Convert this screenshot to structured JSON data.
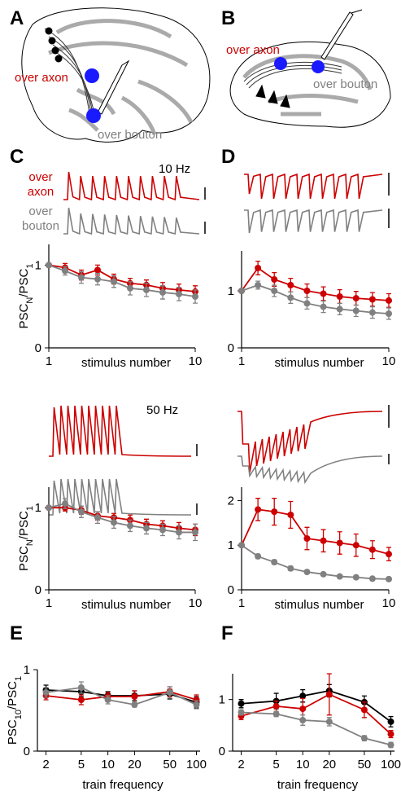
{
  "figure": {
    "panel_labels": [
      "A",
      "B",
      "C",
      "D",
      "E",
      "F"
    ],
    "diagram_a": {
      "axon_label": "over axon",
      "bouton_label": "over bouton"
    },
    "diagram_b": {
      "axon_label": "over axon",
      "bouton_label": "over bouton"
    },
    "freq_10": "10 Hz",
    "freq_50": "50 Hz",
    "trace_axon": [
      "over",
      "axon"
    ],
    "trace_bouton": [
      "over",
      "bouton"
    ]
  },
  "chart_data": [
    {
      "type": "line",
      "xlabel": "stimulus number",
      "ylabel": {
        "main": "PSC",
        "sub": "N",
        "main2": "/PSC",
        "sub2": "1"
      },
      "x": [
        1,
        2,
        3,
        4,
        5,
        6,
        7,
        8,
        9,
        10
      ],
      "xlim": [
        1,
        10
      ],
      "xticks": [
        1,
        10
      ],
      "ylim": [
        0,
        1.25
      ],
      "yticks": [
        0,
        1
      ],
      "series": [
        {
          "color": "#cc0000",
          "values": [
            1,
            0.97,
            0.88,
            0.94,
            0.83,
            0.78,
            0.76,
            0.72,
            0.7,
            0.68
          ],
          "errors": [
            0,
            0.05,
            0.06,
            0.06,
            0.06,
            0.06,
            0.06,
            0.07,
            0.07,
            0.07
          ]
        },
        {
          "color": "#808080",
          "values": [
            1,
            0.93,
            0.85,
            0.83,
            0.8,
            0.72,
            0.7,
            0.67,
            0.65,
            0.62
          ],
          "errors": [
            0,
            0.05,
            0.07,
            0.07,
            0.07,
            0.08,
            0.08,
            0.08,
            0.08,
            0.08
          ]
        }
      ]
    },
    {
      "type": "line",
      "xlabel": "stimulus number",
      "x": [
        1,
        2,
        3,
        4,
        5,
        6,
        7,
        8,
        9,
        10
      ],
      "xlim": [
        1,
        10
      ],
      "xticks": [
        1,
        10
      ],
      "ylim": [
        0,
        1.7
      ],
      "yticks": [
        0,
        1
      ],
      "series": [
        {
          "color": "#cc0000",
          "values": [
            1,
            1.4,
            1.2,
            1.1,
            1.0,
            0.95,
            0.9,
            0.87,
            0.85,
            0.83
          ],
          "errors": [
            0,
            0.12,
            0.12,
            0.12,
            0.12,
            0.12,
            0.12,
            0.12,
            0.12,
            0.12
          ]
        },
        {
          "color": "#808080",
          "values": [
            1,
            1.1,
            1.0,
            0.88,
            0.78,
            0.72,
            0.68,
            0.65,
            0.62,
            0.6
          ],
          "errors": [
            0,
            0.07,
            0.1,
            0.1,
            0.1,
            0.1,
            0.1,
            0.1,
            0.1,
            0.1
          ]
        }
      ]
    },
    {
      "type": "line",
      "xlabel": "stimulus number",
      "ylabel": {
        "main": "PSC",
        "sub": "N",
        "main2": "/PSC",
        "sub2": "1"
      },
      "x": [
        1,
        2,
        3,
        4,
        5,
        6,
        7,
        8,
        9,
        10
      ],
      "xlim": [
        1,
        10
      ],
      "xticks": [
        1,
        10
      ],
      "ylim": [
        0,
        1.25
      ],
      "yticks": [
        0,
        1
      ],
      "series": [
        {
          "color": "#cc0000",
          "values": [
            1,
            1.0,
            0.97,
            0.9,
            0.88,
            0.85,
            0.8,
            0.78,
            0.75,
            0.73
          ],
          "errors": [
            0,
            0.04,
            0.05,
            0.05,
            0.05,
            0.06,
            0.06,
            0.06,
            0.07,
            0.07
          ]
        },
        {
          "color": "#808080",
          "values": [
            1,
            1.05,
            0.95,
            0.88,
            0.82,
            0.78,
            0.75,
            0.73,
            0.7,
            0.7
          ],
          "errors": [
            0,
            0.06,
            0.07,
            0.07,
            0.07,
            0.07,
            0.07,
            0.07,
            0.08,
            0.1
          ]
        }
      ]
    },
    {
      "type": "line",
      "xlabel": "stimulus number",
      "x": [
        1,
        2,
        3,
        4,
        5,
        6,
        7,
        8,
        9,
        10
      ],
      "xlim": [
        1,
        10
      ],
      "xticks": [
        1,
        10
      ],
      "ylim": [
        0,
        2.3
      ],
      "yticks": [
        0,
        1,
        2
      ],
      "series": [
        {
          "color": "#cc0000",
          "values": [
            1,
            1.8,
            1.75,
            1.68,
            1.15,
            1.1,
            1.05,
            1.0,
            0.9,
            0.8
          ],
          "errors": [
            0,
            0.25,
            0.3,
            0.3,
            0.25,
            0.25,
            0.25,
            0.25,
            0.2,
            0.15
          ]
        },
        {
          "color": "#808080",
          "values": [
            1,
            0.75,
            0.62,
            0.48,
            0.4,
            0.35,
            0.3,
            0.28,
            0.25,
            0.24
          ],
          "errors": [
            0,
            0.05,
            0.05,
            0.05,
            0.04,
            0.04,
            0.04,
            0.04,
            0.04,
            0.04
          ]
        }
      ]
    },
    {
      "type": "line",
      "xscale": "log",
      "xlabel": "train frequency",
      "ylabel": {
        "main": "PSC",
        "sub": "10",
        "main2": "/PSC",
        "sub2": "1"
      },
      "x": [
        2,
        5,
        10,
        20,
        50,
        100
      ],
      "xlim": [
        1.6,
        110
      ],
      "xticks": [
        2,
        5,
        10,
        20,
        50,
        100
      ],
      "ylim": [
        0,
        1
      ],
      "yticks": [
        0,
        1
      ],
      "series": [
        {
          "color": "#000000",
          "values": [
            0.75,
            0.73,
            0.68,
            0.68,
            0.7,
            0.6
          ],
          "errors": [
            0.06,
            0.06,
            0.05,
            0.06,
            0.06,
            0.07
          ]
        },
        {
          "color": "#cc0000",
          "values": [
            0.68,
            0.63,
            0.67,
            0.67,
            0.73,
            0.63
          ],
          "errors": [
            0.05,
            0.06,
            0.05,
            0.07,
            0.06,
            0.06
          ]
        },
        {
          "color": "#808080",
          "values": [
            0.72,
            0.78,
            0.63,
            0.57,
            0.72,
            0.57
          ],
          "errors": [
            0.06,
            0.07,
            0.05,
            0.03,
            0.07,
            0.05
          ]
        }
      ]
    },
    {
      "type": "line",
      "xscale": "log",
      "xlabel": "train frequency",
      "x": [
        2,
        5,
        10,
        20,
        50,
        100
      ],
      "xlim": [
        1.6,
        110
      ],
      "xticks": [
        2,
        5,
        10,
        20,
        50,
        100
      ],
      "ylim": [
        0,
        1.5
      ],
      "yticks": [
        0,
        1
      ],
      "series": [
        {
          "color": "#000000",
          "values": [
            0.92,
            0.97,
            1.07,
            1.17,
            0.95,
            0.57
          ],
          "errors": [
            0.08,
            0.15,
            0.12,
            0.12,
            0.12,
            0.1
          ]
        },
        {
          "color": "#cc0000",
          "values": [
            0.68,
            0.87,
            0.82,
            1.1,
            0.8,
            0.33
          ],
          "errors": [
            0.07,
            0.1,
            0.2,
            0.4,
            0.15,
            0.07
          ]
        },
        {
          "color": "#808080",
          "values": [
            0.75,
            0.72,
            0.6,
            0.57,
            0.25,
            0.12
          ],
          "errors": [
            0.05,
            0.05,
            0.1,
            0.08,
            0.05,
            0.05
          ]
        }
      ]
    }
  ]
}
